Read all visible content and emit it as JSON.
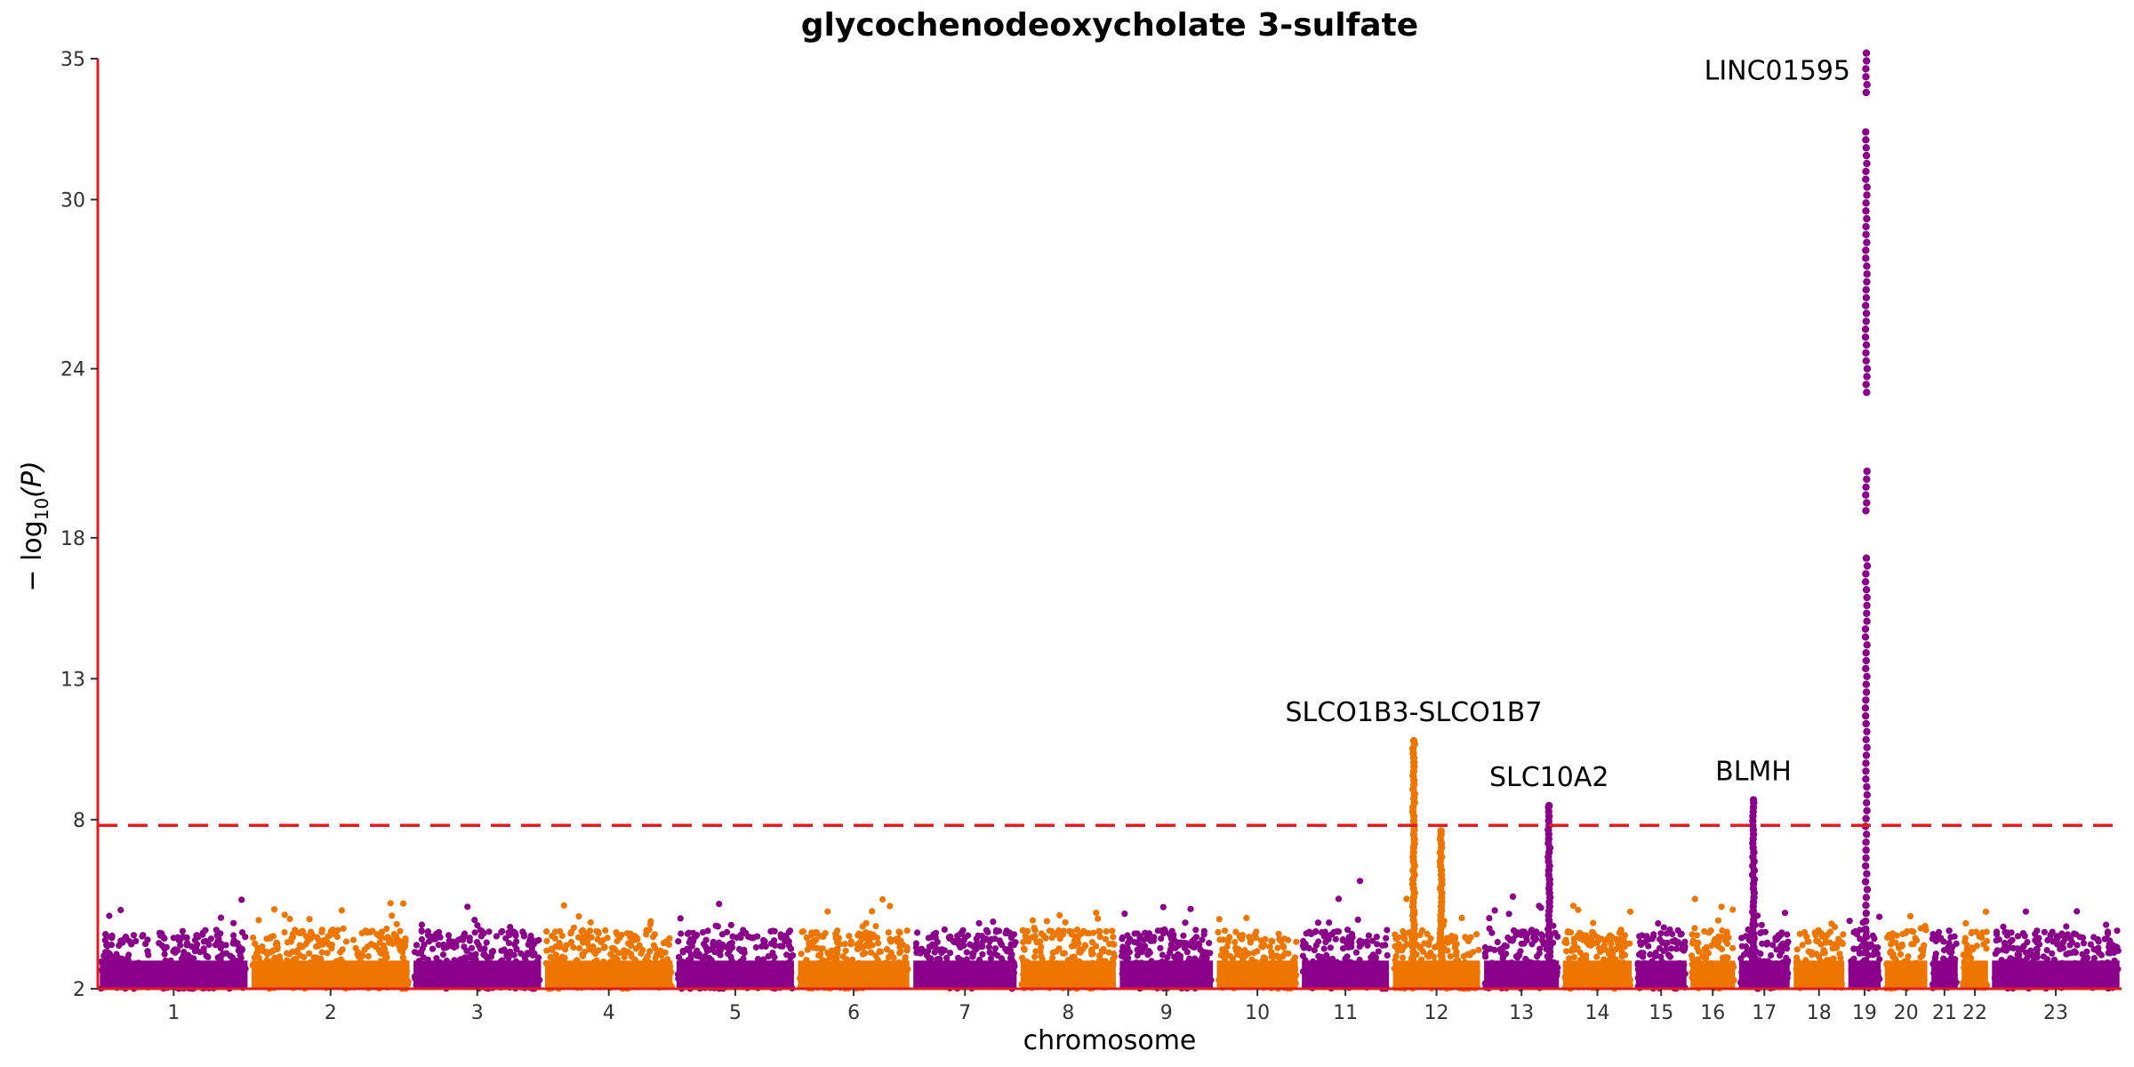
{
  "chart_data": {
    "type": "scatter",
    "title": "glycochenodeoxycholate 3-sulfate",
    "xlabel": "chromosome",
    "ylabel_prefix": "− log",
    "ylabel_sub": "10",
    "ylabel_suffix": "(P)",
    "ylim": [
      2,
      35
    ],
    "yticks": [
      2,
      8,
      13,
      18,
      24,
      30,
      35
    ],
    "threshold": 7.8,
    "colors": {
      "odd": "#8B008B",
      "even": "#EE7600",
      "threshold": "#E41A1C",
      "axis": "#E41A1C"
    },
    "chromosomes": [
      {
        "label": "1",
        "start": 0.0,
        "end": 7.5
      },
      {
        "label": "2",
        "start": 7.5,
        "end": 15.5
      },
      {
        "label": "3",
        "start": 15.5,
        "end": 22.0
      },
      {
        "label": "4",
        "start": 22.0,
        "end": 28.5
      },
      {
        "label": "5",
        "start": 28.5,
        "end": 34.5
      },
      {
        "label": "6",
        "start": 34.5,
        "end": 40.2
      },
      {
        "label": "7",
        "start": 40.2,
        "end": 45.5
      },
      {
        "label": "8",
        "start": 45.5,
        "end": 50.4
      },
      {
        "label": "9",
        "start": 50.4,
        "end": 55.2
      },
      {
        "label": "10",
        "start": 55.2,
        "end": 59.4
      },
      {
        "label": "11",
        "start": 59.4,
        "end": 63.9
      },
      {
        "label": "12",
        "start": 63.9,
        "end": 68.4
      },
      {
        "label": "13",
        "start": 68.4,
        "end": 72.3
      },
      {
        "label": "14",
        "start": 72.3,
        "end": 75.9
      },
      {
        "label": "15",
        "start": 75.9,
        "end": 78.6
      },
      {
        "label": "16",
        "start": 78.6,
        "end": 81.0
      },
      {
        "label": "17",
        "start": 81.0,
        "end": 83.7
      },
      {
        "label": "18",
        "start": 83.7,
        "end": 86.4
      },
      {
        "label": "19",
        "start": 86.4,
        "end": 88.2
      },
      {
        "label": "20",
        "start": 88.2,
        "end": 90.5
      },
      {
        "label": "21",
        "start": 90.5,
        "end": 92.0
      },
      {
        "label": "22",
        "start": 92.0,
        "end": 93.5
      },
      {
        "label": "23",
        "start": 93.5,
        "end": 100.0
      }
    ],
    "peaks": [
      {
        "chrom": "12",
        "pos": 0.25,
        "max": 10.8,
        "label": "SLCO1B3-SLCO1B7"
      },
      {
        "chrom": "12",
        "pos": 0.55,
        "max": 7.6,
        "label": ""
      },
      {
        "chrom": "13",
        "pos": 0.85,
        "max": 8.5,
        "label": "SLC10A2"
      },
      {
        "chrom": "17",
        "pos": 0.3,
        "max": 8.7,
        "label": "BLMH"
      },
      {
        "chrom": "19",
        "pos": 0.55,
        "max": 35.2,
        "label": "LINC01595"
      }
    ]
  }
}
